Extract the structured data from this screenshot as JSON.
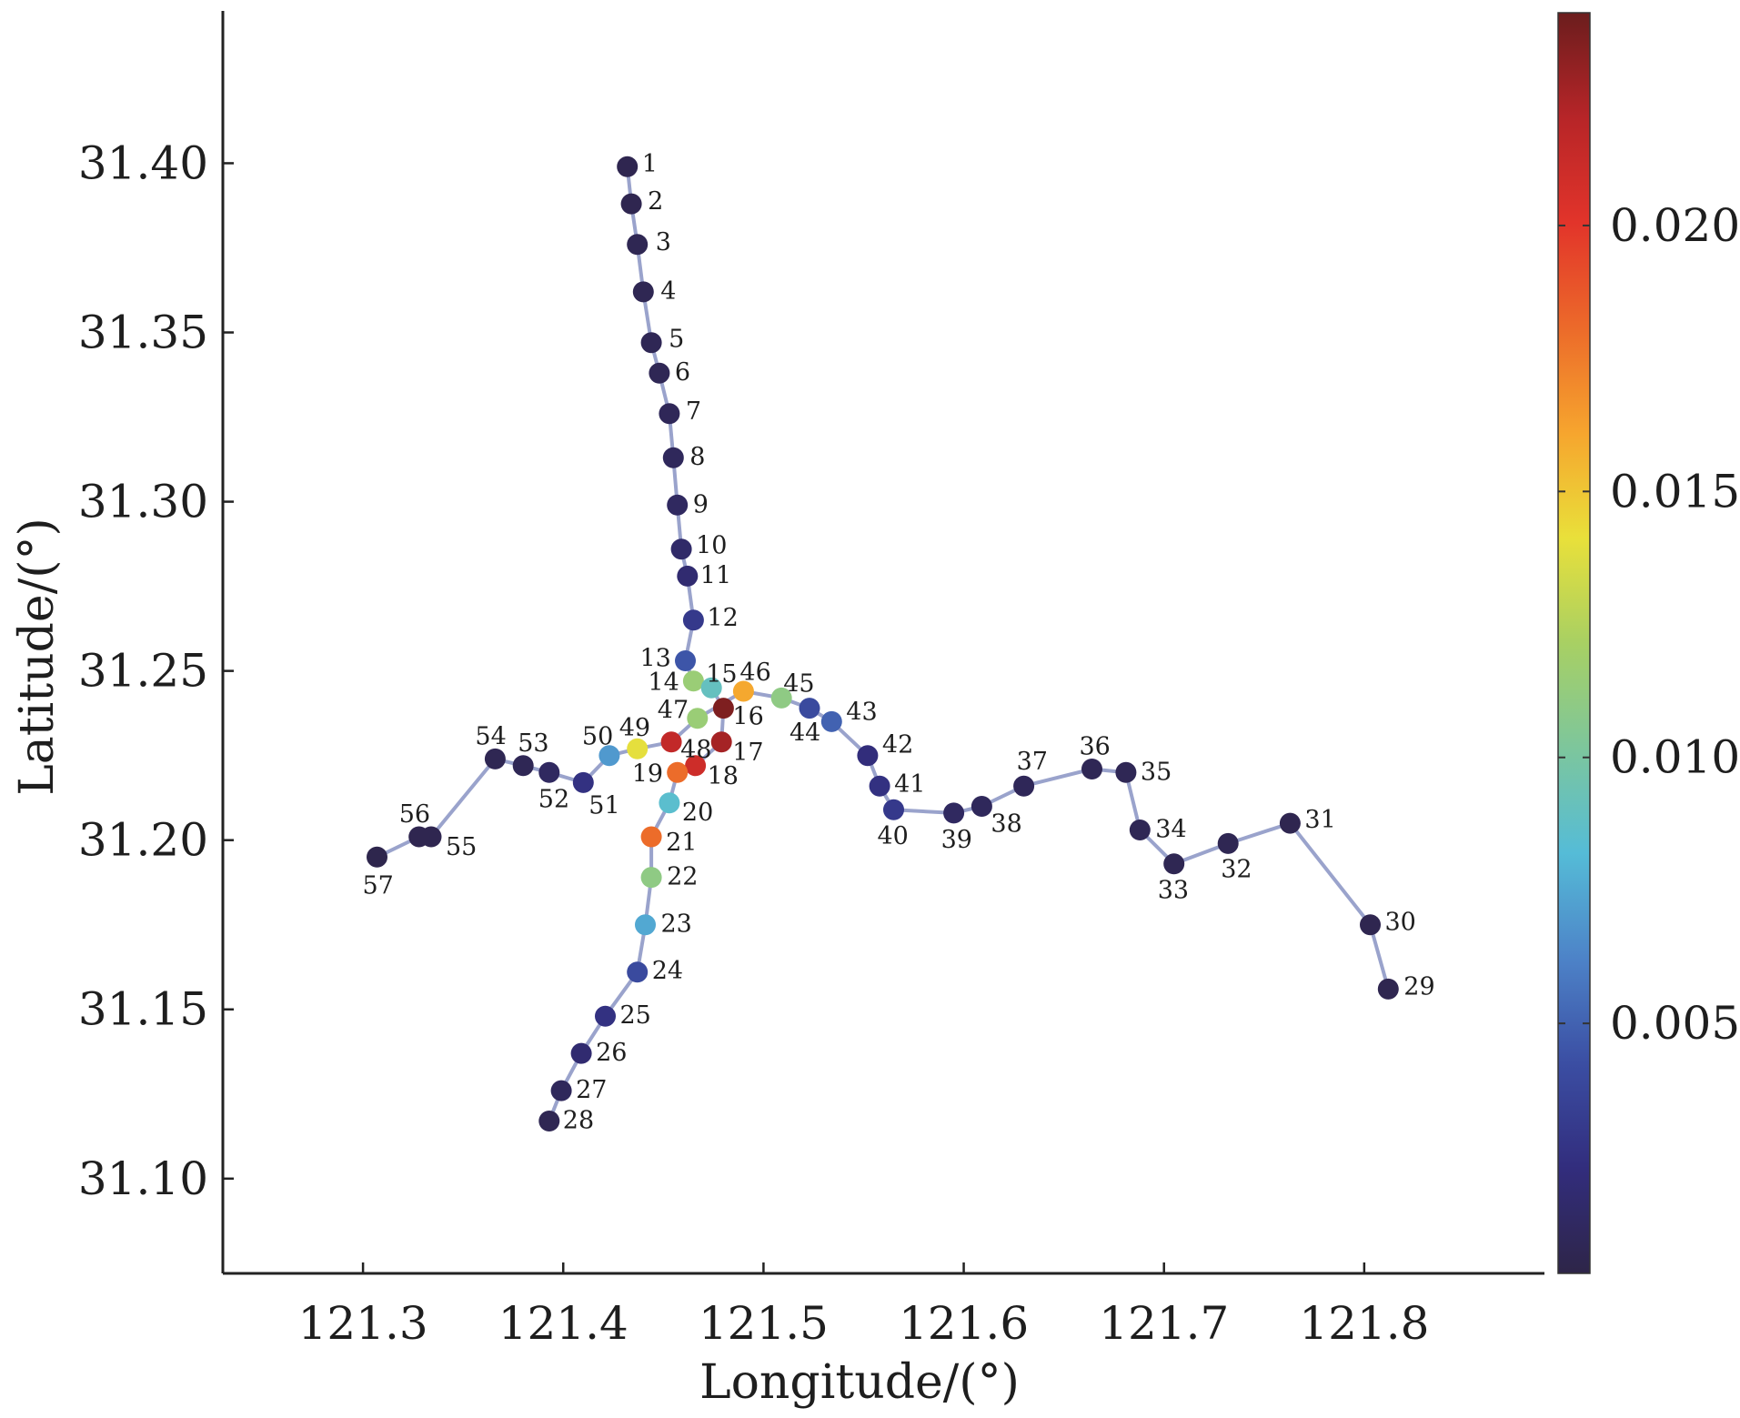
{
  "chart_data": {
    "type": "scatter",
    "xlabel": "Longitude/(°)",
    "ylabel": "Latitude/(°)",
    "xlim": [
      121.23,
      121.89
    ],
    "ylim": [
      31.072,
      31.445
    ],
    "x_ticks": [
      "121.3",
      "121.4",
      "121.5",
      "121.6",
      "121.7",
      "121.8"
    ],
    "x_tick_values": [
      121.3,
      121.4,
      121.5,
      121.6,
      121.7,
      121.8
    ],
    "y_ticks": [
      "31.10",
      "31.15",
      "31.20",
      "31.25",
      "31.30",
      "31.35",
      "31.40"
    ],
    "y_tick_values": [
      31.1,
      31.15,
      31.2,
      31.25,
      31.3,
      31.35,
      31.4
    ],
    "line_color": "#9aa3cc",
    "colorbar": {
      "min": 0.0003,
      "max": 0.024,
      "tick_values": [
        0.005,
        0.01,
        0.015,
        0.02
      ],
      "tick_labels": [
        "0.005",
        "0.010",
        "0.015",
        "0.020"
      ],
      "stops": [
        "#2e2548",
        "#322d7d",
        "#3b4ea3",
        "#4d83c8",
        "#55bcd7",
        "#7dc69c",
        "#a8d063",
        "#e9e03a",
        "#f6a52e",
        "#ec6a2a",
        "#e2342a",
        "#b72528",
        "#6b1d1d"
      ]
    },
    "paths": [
      [
        1,
        2,
        3,
        4,
        5,
        6,
        7,
        8,
        9,
        10,
        11,
        12,
        13,
        14,
        15,
        16,
        17,
        18,
        19,
        20,
        21,
        22,
        23,
        24,
        25,
        26,
        27,
        28
      ],
      [
        29,
        30,
        31,
        32,
        33,
        34,
        35,
        36,
        37,
        38,
        39,
        40,
        41,
        42,
        43,
        44,
        45,
        46,
        47,
        48,
        49,
        50,
        51,
        52,
        53,
        54,
        55,
        56,
        57
      ]
    ],
    "points": [
      {
        "id": "1",
        "lon": 121.432,
        "lat": 31.399,
        "value": 0.0006,
        "dx": 16,
        "dy": 6
      },
      {
        "id": "2",
        "lon": 121.434,
        "lat": 31.388,
        "value": 0.0006,
        "dx": 18,
        "dy": 6
      },
      {
        "id": "3",
        "lon": 121.437,
        "lat": 31.376,
        "value": 0.0007,
        "dx": 20,
        "dy": 6
      },
      {
        "id": "4",
        "lon": 121.44,
        "lat": 31.362,
        "value": 0.0007,
        "dx": 19,
        "dy": 8
      },
      {
        "id": "5",
        "lon": 121.444,
        "lat": 31.347,
        "value": 0.0008,
        "dx": 19,
        "dy": 5
      },
      {
        "id": "6",
        "lon": 121.448,
        "lat": 31.338,
        "value": 0.0008,
        "dx": 17,
        "dy": 8
      },
      {
        "id": "7",
        "lon": 121.453,
        "lat": 31.326,
        "value": 0.0009,
        "dx": 18,
        "dy": 6
      },
      {
        "id": "8",
        "lon": 121.455,
        "lat": 31.313,
        "value": 0.001,
        "dx": 18,
        "dy": 8
      },
      {
        "id": "9",
        "lon": 121.457,
        "lat": 31.299,
        "value": 0.0012,
        "dx": 17,
        "dy": 8
      },
      {
        "id": "10",
        "lon": 121.459,
        "lat": 31.286,
        "value": 0.0015,
        "dx": 16,
        "dy": 5
      },
      {
        "id": "11",
        "lon": 121.462,
        "lat": 31.278,
        "value": 0.0018,
        "dx": 14,
        "dy": 8
      },
      {
        "id": "12",
        "lon": 121.465,
        "lat": 31.265,
        "value": 0.003,
        "dx": 15,
        "dy": 6
      },
      {
        "id": "13",
        "lon": 121.461,
        "lat": 31.253,
        "value": 0.0045,
        "dx": -50,
        "dy": 6
      },
      {
        "id": "14",
        "lon": 121.465,
        "lat": 31.247,
        "value": 0.0115,
        "dx": -50,
        "dy": 10
      },
      {
        "id": "15",
        "lon": 121.474,
        "lat": 31.245,
        "value": 0.009,
        "dx": -6,
        "dy": -6
      },
      {
        "id": "16",
        "lon": 121.48,
        "lat": 31.239,
        "value": 0.0235,
        "dx": 10,
        "dy": 18
      },
      {
        "id": "17",
        "lon": 121.479,
        "lat": 31.229,
        "value": 0.0225,
        "dx": 12,
        "dy": 20
      },
      {
        "id": "18",
        "lon": 121.466,
        "lat": 31.222,
        "value": 0.021,
        "dx": 13,
        "dy": 20
      },
      {
        "id": "19",
        "lon": 121.457,
        "lat": 31.22,
        "value": 0.018,
        "dx": -50,
        "dy": 10
      },
      {
        "id": "20",
        "lon": 121.453,
        "lat": 31.211,
        "value": 0.0085,
        "dx": 14,
        "dy": 19
      },
      {
        "id": "21",
        "lon": 121.444,
        "lat": 31.201,
        "value": 0.018,
        "dx": 16,
        "dy": 15
      },
      {
        "id": "22",
        "lon": 121.444,
        "lat": 31.189,
        "value": 0.011,
        "dx": 17,
        "dy": 8
      },
      {
        "id": "23",
        "lon": 121.441,
        "lat": 31.175,
        "value": 0.0075,
        "dx": 17,
        "dy": 8
      },
      {
        "id": "24",
        "lon": 121.437,
        "lat": 31.161,
        "value": 0.004,
        "dx": 16,
        "dy": 7
      },
      {
        "id": "25",
        "lon": 121.421,
        "lat": 31.148,
        "value": 0.0025,
        "dx": 16,
        "dy": 8
      },
      {
        "id": "26",
        "lon": 121.409,
        "lat": 31.137,
        "value": 0.0018,
        "dx": 16,
        "dy": 8
      },
      {
        "id": "27",
        "lon": 121.399,
        "lat": 31.126,
        "value": 0.001,
        "dx": 16,
        "dy": 8
      },
      {
        "id": "28",
        "lon": 121.393,
        "lat": 31.117,
        "value": 0.0007,
        "dx": 15,
        "dy": 8
      },
      {
        "id": "29",
        "lon": 121.812,
        "lat": 31.156,
        "value": 0.0006,
        "dx": 17,
        "dy": 6
      },
      {
        "id": "30",
        "lon": 121.803,
        "lat": 31.175,
        "value": 0.0006,
        "dx": 16,
        "dy": 6
      },
      {
        "id": "31",
        "lon": 121.763,
        "lat": 31.205,
        "value": 0.0006,
        "dx": 16,
        "dy": 5
      },
      {
        "id": "32",
        "lon": 121.732,
        "lat": 31.199,
        "value": 0.0007,
        "dx": -8,
        "dy": 37
      },
      {
        "id": "33",
        "lon": 121.705,
        "lat": 31.193,
        "value": 0.0007,
        "dx": -18,
        "dy": 38
      },
      {
        "id": "34",
        "lon": 121.688,
        "lat": 31.203,
        "value": 0.0008,
        "dx": 17,
        "dy": 8
      },
      {
        "id": "35",
        "lon": 121.681,
        "lat": 31.22,
        "value": 0.0008,
        "dx": 16,
        "dy": 8
      },
      {
        "id": "36",
        "lon": 121.664,
        "lat": 31.221,
        "value": 0.0008,
        "dx": -14,
        "dy": -16
      },
      {
        "id": "37",
        "lon": 121.63,
        "lat": 31.216,
        "value": 0.0009,
        "dx": -8,
        "dy": -18
      },
      {
        "id": "38",
        "lon": 121.609,
        "lat": 31.21,
        "value": 0.001,
        "dx": 10,
        "dy": 28
      },
      {
        "id": "39",
        "lon": 121.595,
        "lat": 31.208,
        "value": 0.0012,
        "dx": -14,
        "dy": 38
      },
      {
        "id": "40",
        "lon": 121.565,
        "lat": 31.209,
        "value": 0.003,
        "dx": -18,
        "dy": 38
      },
      {
        "id": "41",
        "lon": 121.558,
        "lat": 31.216,
        "value": 0.0025,
        "dx": 16,
        "dy": 7
      },
      {
        "id": "42",
        "lon": 121.552,
        "lat": 31.225,
        "value": 0.0022,
        "dx": 16,
        "dy": -3
      },
      {
        "id": "43",
        "lon": 121.534,
        "lat": 31.235,
        "value": 0.005,
        "dx": 16,
        "dy": -2
      },
      {
        "id": "44",
        "lon": 121.523,
        "lat": 31.239,
        "value": 0.004,
        "dx": -22,
        "dy": 36
      },
      {
        "id": "45",
        "lon": 121.509,
        "lat": 31.242,
        "value": 0.011,
        "dx": 2,
        "dy": -7
      },
      {
        "id": "46",
        "lon": 121.49,
        "lat": 31.244,
        "value": 0.016,
        "dx": -4,
        "dy": -12
      },
      {
        "id": "47",
        "lon": 121.467,
        "lat": 31.236,
        "value": 0.0115,
        "dx": -44,
        "dy": 0
      },
      {
        "id": "48",
        "lon": 121.454,
        "lat": 31.229,
        "value": 0.0215,
        "dx": 10,
        "dy": 17
      },
      {
        "id": "49",
        "lon": 121.437,
        "lat": 31.227,
        "value": 0.014,
        "dx": -20,
        "dy": -14
      },
      {
        "id": "50",
        "lon": 121.423,
        "lat": 31.225,
        "value": 0.007,
        "dx": -30,
        "dy": -12
      },
      {
        "id": "51",
        "lon": 121.41,
        "lat": 31.217,
        "value": 0.0025,
        "dx": 6,
        "dy": 34
      },
      {
        "id": "52",
        "lon": 121.393,
        "lat": 31.22,
        "value": 0.0012,
        "dx": -12,
        "dy": 38
      },
      {
        "id": "53",
        "lon": 121.38,
        "lat": 31.222,
        "value": 0.0008,
        "dx": -6,
        "dy": -16
      },
      {
        "id": "54",
        "lon": 121.366,
        "lat": 31.224,
        "value": 0.0007,
        "dx": -22,
        "dy": -16
      },
      {
        "id": "55",
        "lon": 121.334,
        "lat": 31.201,
        "value": 0.0006,
        "dx": 16,
        "dy": 20
      },
      {
        "id": "56",
        "lon": 121.328,
        "lat": 31.201,
        "value": 0.0006,
        "dx": -22,
        "dy": -16
      },
      {
        "id": "57",
        "lon": 121.307,
        "lat": 31.195,
        "value": 0.0005,
        "dx": -16,
        "dy": 40
      }
    ]
  }
}
